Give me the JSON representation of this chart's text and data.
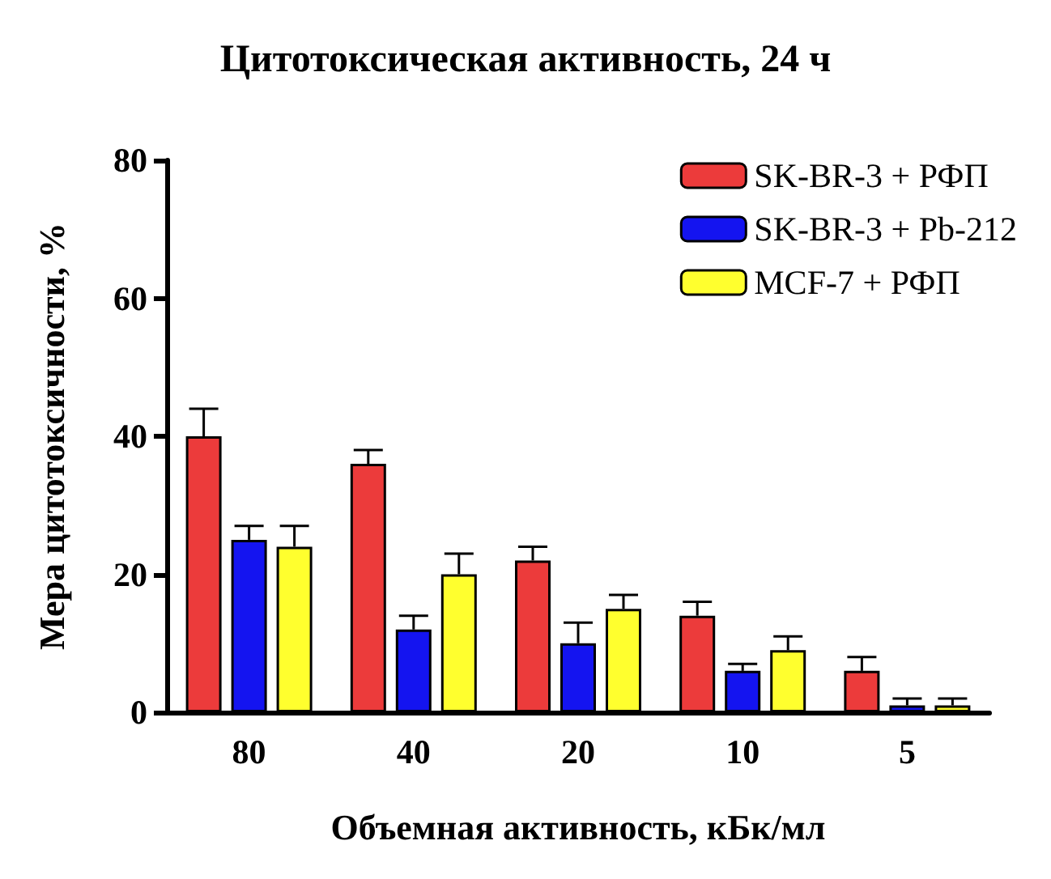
{
  "chart_data": {
    "type": "bar",
    "title": "Цитотоксическая активность, 24 ч",
    "xlabel": "Объемная активность, кБк/мл",
    "ylabel": "Мера цитотоксичности, %",
    "categories": [
      "80",
      "40",
      "20",
      "10",
      "5"
    ],
    "series": [
      {
        "name": "SK-BR-3 + РФП",
        "color": "#ec3b3b",
        "values": [
          40,
          36,
          22,
          14,
          6
        ],
        "errors": [
          [
            40,
            44
          ],
          [
            36,
            38
          ],
          [
            22,
            24
          ],
          [
            14,
            16
          ],
          [
            6,
            8
          ]
        ]
      },
      {
        "name": "SK-BR-3 + Pb-212",
        "color": "#1414f0",
        "values": [
          25,
          12,
          10,
          6,
          1
        ],
        "errors": [
          [
            25,
            27
          ],
          [
            12,
            14
          ],
          [
            10,
            13
          ],
          [
            6,
            7
          ],
          [
            1,
            2
          ]
        ]
      },
      {
        "name": "MCF-7 + РФП",
        "color": "#ffff2e",
        "values": [
          24,
          20,
          15,
          9,
          1
        ],
        "errors": [
          [
            24,
            27
          ],
          [
            20,
            23
          ],
          [
            15,
            17
          ],
          [
            9,
            11
          ],
          [
            1,
            2
          ]
        ]
      }
    ],
    "ylim": [
      0,
      80
    ],
    "yticks": [
      0,
      20,
      40,
      60,
      80
    ],
    "grid": false,
    "legend": "top right"
  }
}
